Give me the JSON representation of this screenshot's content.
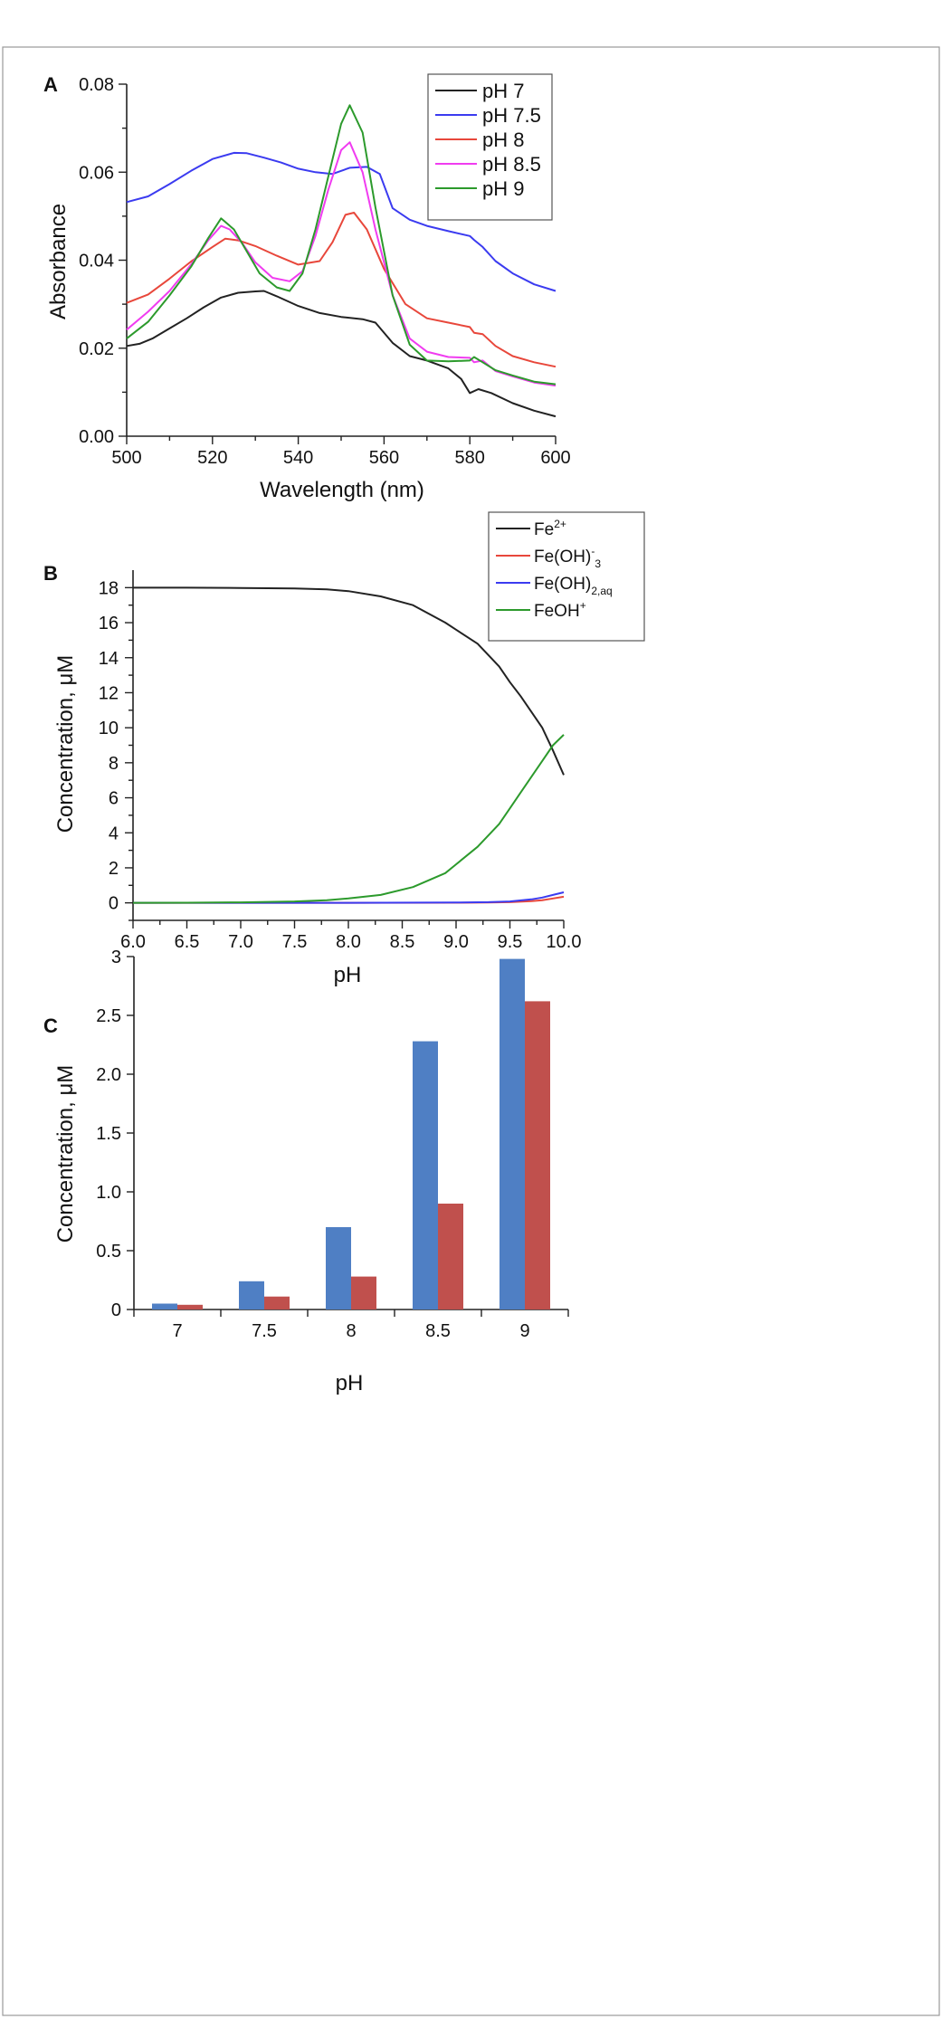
{
  "colors": {
    "black": "#222222",
    "blue": "#3b3bf0",
    "red": "#e8473b",
    "magenta": "#f03cf0",
    "green": "#2c9a2c",
    "bar_blue": "#4f7fc4",
    "bar_red": "#c0504d"
  },
  "chart_data": [
    {
      "panel": "A",
      "type": "line",
      "xlabel": "Wavelength (nm)",
      "ylabel": "Absorbance",
      "xlim": [
        500,
        600
      ],
      "ylim": [
        0,
        0.08
      ],
      "xticks": [
        500,
        520,
        540,
        560,
        580,
        600
      ],
      "xtick_labels": [
        "500",
        "520",
        "540",
        "560",
        "580",
        "600"
      ],
      "yticks": [
        0,
        0.02,
        0.04,
        0.06,
        0.08
      ],
      "ytick_labels": [
        "0.00",
        "0.02",
        "0.04",
        "0.06",
        "0.08"
      ],
      "legend_position": "top-right",
      "series": [
        {
          "name": "pH 7",
          "color": "black",
          "x": [
            500,
            503,
            506,
            510,
            514,
            518,
            522,
            526,
            530,
            532,
            535,
            540,
            545,
            550,
            555,
            558,
            562,
            566,
            570,
            575,
            578,
            580,
            582,
            585,
            590,
            595,
            600
          ],
          "y": [
            0.0205,
            0.021,
            0.0222,
            0.0245,
            0.0268,
            0.0293,
            0.0315,
            0.0326,
            0.0329,
            0.033,
            0.0318,
            0.0296,
            0.028,
            0.0271,
            0.0266,
            0.0258,
            0.0212,
            0.0182,
            0.0172,
            0.0154,
            0.013,
            0.0098,
            0.0107,
            0.0098,
            0.0075,
            0.0058,
            0.0045
          ]
        },
        {
          "name": "pH 7.5",
          "color": "blue",
          "x": [
            500,
            505,
            510,
            515,
            520,
            525,
            528,
            532,
            536,
            540,
            544,
            548,
            552,
            556,
            559,
            562,
            566,
            570,
            575,
            580,
            581,
            583,
            586,
            590,
            595,
            600
          ],
          "y": [
            0.0532,
            0.0545,
            0.0573,
            0.0603,
            0.063,
            0.0644,
            0.0643,
            0.0633,
            0.0622,
            0.0608,
            0.06,
            0.0596,
            0.061,
            0.0612,
            0.0596,
            0.0518,
            0.0492,
            0.0478,
            0.0466,
            0.0455,
            0.0446,
            0.043,
            0.0398,
            0.037,
            0.0345,
            0.033
          ]
        },
        {
          "name": "pH 8",
          "color": "red",
          "x": [
            500,
            505,
            510,
            515,
            520,
            523,
            526,
            530,
            535,
            540,
            545,
            548,
            551,
            553,
            556,
            560,
            565,
            570,
            575,
            580,
            581,
            583,
            586,
            590,
            595,
            600
          ],
          "y": [
            0.0303,
            0.0322,
            0.0358,
            0.0397,
            0.043,
            0.0449,
            0.0445,
            0.0432,
            0.041,
            0.039,
            0.0398,
            0.0441,
            0.0503,
            0.0508,
            0.047,
            0.038,
            0.03,
            0.0268,
            0.0258,
            0.0248,
            0.0235,
            0.0232,
            0.0205,
            0.0182,
            0.0168,
            0.0158
          ]
        },
        {
          "name": "pH 8.5",
          "color": "magenta",
          "x": [
            500,
            505,
            510,
            515,
            519,
            522,
            524,
            527,
            530,
            534,
            538,
            541,
            544,
            547,
            550,
            552,
            555,
            558,
            562,
            566,
            570,
            575,
            580,
            581,
            583,
            586,
            590,
            595,
            600
          ],
          "y": [
            0.0242,
            0.0283,
            0.033,
            0.039,
            0.0445,
            0.0478,
            0.047,
            0.0438,
            0.0395,
            0.036,
            0.0352,
            0.0375,
            0.0455,
            0.056,
            0.065,
            0.0668,
            0.06,
            0.047,
            0.032,
            0.0222,
            0.0192,
            0.018,
            0.0178,
            0.0168,
            0.0172,
            0.0148,
            0.0136,
            0.0122,
            0.0115
          ]
        },
        {
          "name": "pH 9",
          "color": "green",
          "x": [
            500,
            505,
            510,
            515,
            519,
            522,
            525,
            528,
            531,
            535,
            538,
            541,
            544,
            547,
            550,
            552,
            555,
            558,
            562,
            566,
            570,
            575,
            580,
            581,
            583,
            586,
            590,
            595,
            600
          ],
          "y": [
            0.0222,
            0.026,
            0.032,
            0.0385,
            0.045,
            0.0495,
            0.047,
            0.042,
            0.037,
            0.0338,
            0.033,
            0.037,
            0.047,
            0.059,
            0.071,
            0.0752,
            0.069,
            0.052,
            0.032,
            0.0208,
            0.0172,
            0.017,
            0.0172,
            0.018,
            0.0168,
            0.015,
            0.0138,
            0.0124,
            0.0118
          ]
        }
      ]
    },
    {
      "panel": "B",
      "type": "line",
      "xlabel": "pH",
      "ylabel": "Concentration, μM",
      "xlim": [
        6,
        10
      ],
      "ylim": [
        -1,
        19
      ],
      "xticks": [
        6,
        6.5,
        7,
        7.5,
        8,
        8.5,
        9,
        9.5,
        10
      ],
      "xtick_labels": [
        "6.0",
        "6.5",
        "7.0",
        "7.5",
        "8.0",
        "8.5",
        "9.0",
        "9.5",
        "10.0"
      ],
      "yticks": [
        0,
        2,
        4,
        6,
        8,
        10,
        12,
        14,
        16,
        18
      ],
      "ytick_labels": [
        "0",
        "2",
        "4",
        "6",
        "8",
        "10",
        "12",
        "14",
        "16",
        "18"
      ],
      "legend_position": "top-right outside",
      "series": [
        {
          "name": "Fe",
          "sup": "2+",
          "sub": "",
          "color": "black",
          "x": [
            6.0,
            6.5,
            7.0,
            7.5,
            7.8,
            8.0,
            8.3,
            8.6,
            8.9,
            9.0,
            9.2,
            9.4,
            9.5,
            9.6,
            9.7,
            9.8,
            9.9,
            10.0
          ],
          "y": [
            18.0,
            18.0,
            17.98,
            17.95,
            17.9,
            17.8,
            17.5,
            17.0,
            16.0,
            15.6,
            14.8,
            13.5,
            12.6,
            11.8,
            10.9,
            10.0,
            8.7,
            7.3
          ]
        },
        {
          "name": "Fe(OH)",
          "sup": "-",
          "sub": "3",
          "color": "red",
          "x": [
            6.0,
            7.0,
            8.0,
            9.0,
            9.3,
            9.5,
            9.7,
            9.8,
            9.9,
            10.0
          ],
          "y": [
            0,
            0,
            0,
            0.01,
            0.02,
            0.04,
            0.1,
            0.15,
            0.25,
            0.35
          ]
        },
        {
          "name": "Fe(OH)",
          "sup": "",
          "sub": "2,aq",
          "color": "blue",
          "x": [
            6.0,
            7.0,
            8.0,
            9.0,
            9.3,
            9.5,
            9.7,
            9.8,
            9.9,
            10.0
          ],
          "y": [
            0,
            0,
            0,
            0.02,
            0.04,
            0.08,
            0.2,
            0.3,
            0.45,
            0.6
          ]
        },
        {
          "name": "FeOH",
          "sup": "+",
          "sub": "",
          "color": "green",
          "x": [
            6.0,
            6.5,
            7.0,
            7.5,
            7.8,
            8.0,
            8.3,
            8.6,
            8.9,
            9.0,
            9.2,
            9.4,
            9.5,
            9.6,
            9.7,
            9.8,
            9.9,
            10.0
          ],
          "y": [
            0,
            0.01,
            0.03,
            0.08,
            0.15,
            0.25,
            0.45,
            0.9,
            1.7,
            2.2,
            3.2,
            4.5,
            5.4,
            6.3,
            7.2,
            8.1,
            9.0,
            9.6
          ]
        }
      ]
    },
    {
      "panel": "C",
      "type": "bar",
      "xlabel": "pH",
      "ylabel": "Concentration, μM",
      "ylim": [
        0,
        3
      ],
      "yticks": [
        0,
        0.5,
        1,
        1.5,
        2,
        2.5,
        3
      ],
      "ytick_labels": [
        "0",
        "0.5",
        "1.0",
        "1.5",
        "2.0",
        "2.5",
        "3"
      ],
      "categories": [
        "7",
        "7.5",
        "8",
        "8.5",
        "9"
      ],
      "series": [
        {
          "color": "bar_blue",
          "values": [
            0.05,
            0.24,
            0.7,
            2.28,
            2.98
          ]
        },
        {
          "color": "bar_red",
          "values": [
            0.04,
            0.11,
            0.28,
            0.9,
            2.62
          ]
        }
      ]
    }
  ]
}
